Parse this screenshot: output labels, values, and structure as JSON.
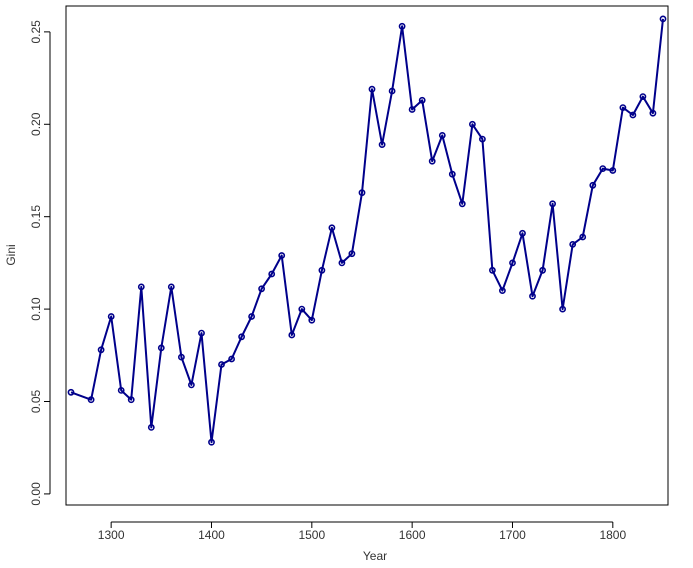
{
  "chart_data": {
    "type": "line",
    "title": "",
    "xlabel": "Year",
    "ylabel": "Gini",
    "xlim": [
      1255,
      1855
    ],
    "ylim": [
      -0.006,
      0.264
    ],
    "x_ticks": [
      1300,
      1400,
      1500,
      1600,
      1700,
      1800
    ],
    "y_ticks": [
      0.0,
      0.05,
      0.1,
      0.15,
      0.2,
      0.25
    ],
    "x_tick_labels": [
      "1300",
      "1400",
      "1500",
      "1600",
      "1700",
      "1800"
    ],
    "y_tick_labels": [
      "0.00",
      "0.05",
      "0.10",
      "0.15",
      "0.20",
      "0.25"
    ],
    "grid": false,
    "colors": {
      "series": "#00008b",
      "axis": "#000000",
      "text": "#333333"
    },
    "series": [
      {
        "x": [
          1260,
          1280,
          1290,
          1300,
          1310,
          1320,
          1330,
          1340,
          1350,
          1360,
          1370,
          1380,
          1390,
          1400,
          1410,
          1420,
          1430,
          1440,
          1450,
          1460,
          1470,
          1480,
          1490,
          1500,
          1510,
          1520,
          1530,
          1540,
          1550,
          1560,
          1570,
          1580,
          1590,
          1600,
          1610,
          1620,
          1630,
          1640,
          1650,
          1660,
          1670,
          1680,
          1690,
          1700,
          1710,
          1720,
          1730,
          1740,
          1750,
          1760,
          1770,
          1780,
          1790,
          1800,
          1810,
          1820,
          1830,
          1840,
          1850
        ],
        "y": [
          0.055,
          0.051,
          0.078,
          0.096,
          0.056,
          0.051,
          0.112,
          0.036,
          0.079,
          0.112,
          0.074,
          0.059,
          0.087,
          0.028,
          0.07,
          0.073,
          0.085,
          0.096,
          0.111,
          0.119,
          0.129,
          0.086,
          0.1,
          0.094,
          0.121,
          0.144,
          0.125,
          0.13,
          0.163,
          0.219,
          0.189,
          0.218,
          0.253,
          0.208,
          0.213,
          0.18,
          0.194,
          0.173,
          0.157,
          0.2,
          0.192,
          0.121,
          0.11,
          0.125,
          0.141,
          0.107,
          0.121,
          0.157,
          0.1,
          0.135,
          0.139,
          0.167,
          0.176,
          0.175,
          0.209,
          0.205,
          0.215,
          0.206,
          0.257
        ]
      }
    ]
  }
}
